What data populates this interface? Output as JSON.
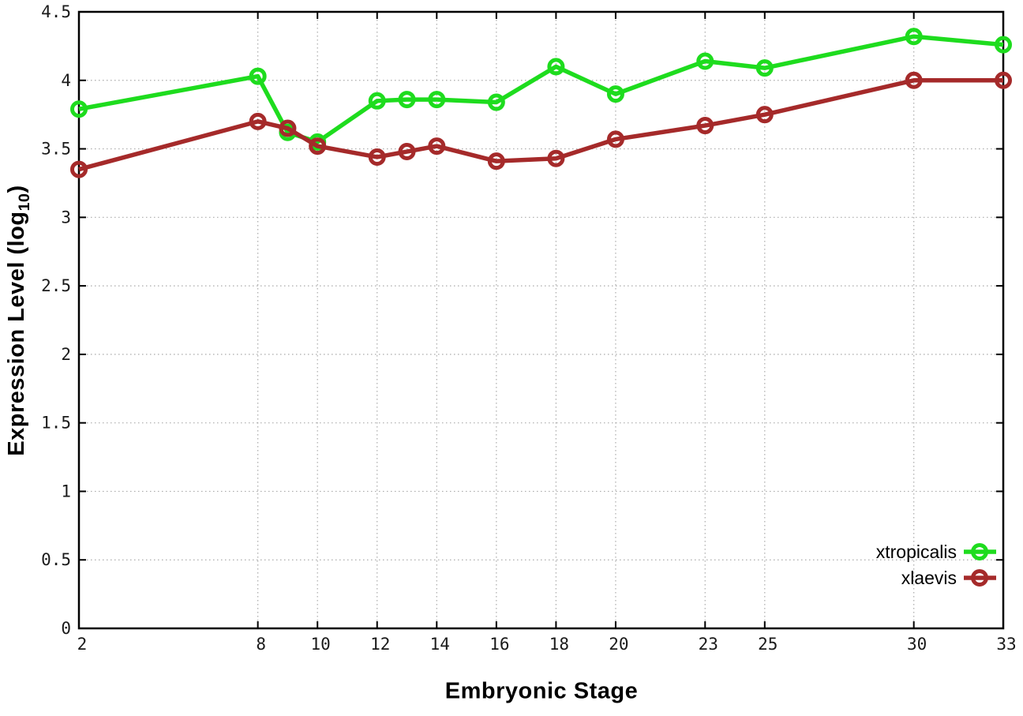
{
  "chart_data": {
    "type": "line",
    "title": "",
    "xlabel": "Embryonic Stage",
    "ylabel": "Expression Level (log10)",
    "ylabel_parts": {
      "pre": "Expression Level (log",
      "sub": "10",
      "post": ")"
    },
    "x": [
      2,
      8,
      9,
      10,
      12,
      13,
      14,
      16,
      18,
      20,
      23,
      25,
      30,
      33
    ],
    "series": [
      {
        "name": "xtropicalis",
        "color": "#1edc1e",
        "values": [
          3.79,
          4.03,
          3.62,
          3.55,
          3.85,
          3.86,
          3.86,
          3.84,
          4.1,
          3.9,
          4.14,
          4.09,
          4.32,
          4.26
        ]
      },
      {
        "name": "xlaevis",
        "color": "#a52a2a",
        "values": [
          3.35,
          3.7,
          3.65,
          3.52,
          3.44,
          3.48,
          3.52,
          3.41,
          3.43,
          3.57,
          3.67,
          3.75,
          4.0,
          4.0
        ]
      }
    ],
    "x_tick_labels": [
      "2",
      "8",
      "10",
      "12",
      "14",
      "16",
      "18",
      "20",
      "23",
      "25",
      "30",
      "33"
    ],
    "x_tick_values": [
      2,
      8,
      10,
      12,
      14,
      16,
      18,
      20,
      23,
      25,
      30,
      33
    ],
    "y_tick_labels": [
      "0",
      "0.5",
      "1",
      "1.5",
      "2",
      "2.5",
      "3",
      "3.5",
      "4",
      "4.5"
    ],
    "y_tick_values": [
      0,
      0.5,
      1,
      1.5,
      2,
      2.5,
      3,
      3.5,
      4,
      4.5
    ],
    "xlim": [
      2,
      33
    ],
    "ylim": [
      0,
      4.5
    ],
    "grid": true,
    "legend_position": "bottom-right",
    "colors": {
      "background": "#ffffff",
      "plot_border": "#000000",
      "grid_line": "#aaaaaa",
      "tick_label": "#1a1a1a",
      "xtropicalis": "#1edc1e",
      "xlaevis": "#a52a2a"
    }
  }
}
